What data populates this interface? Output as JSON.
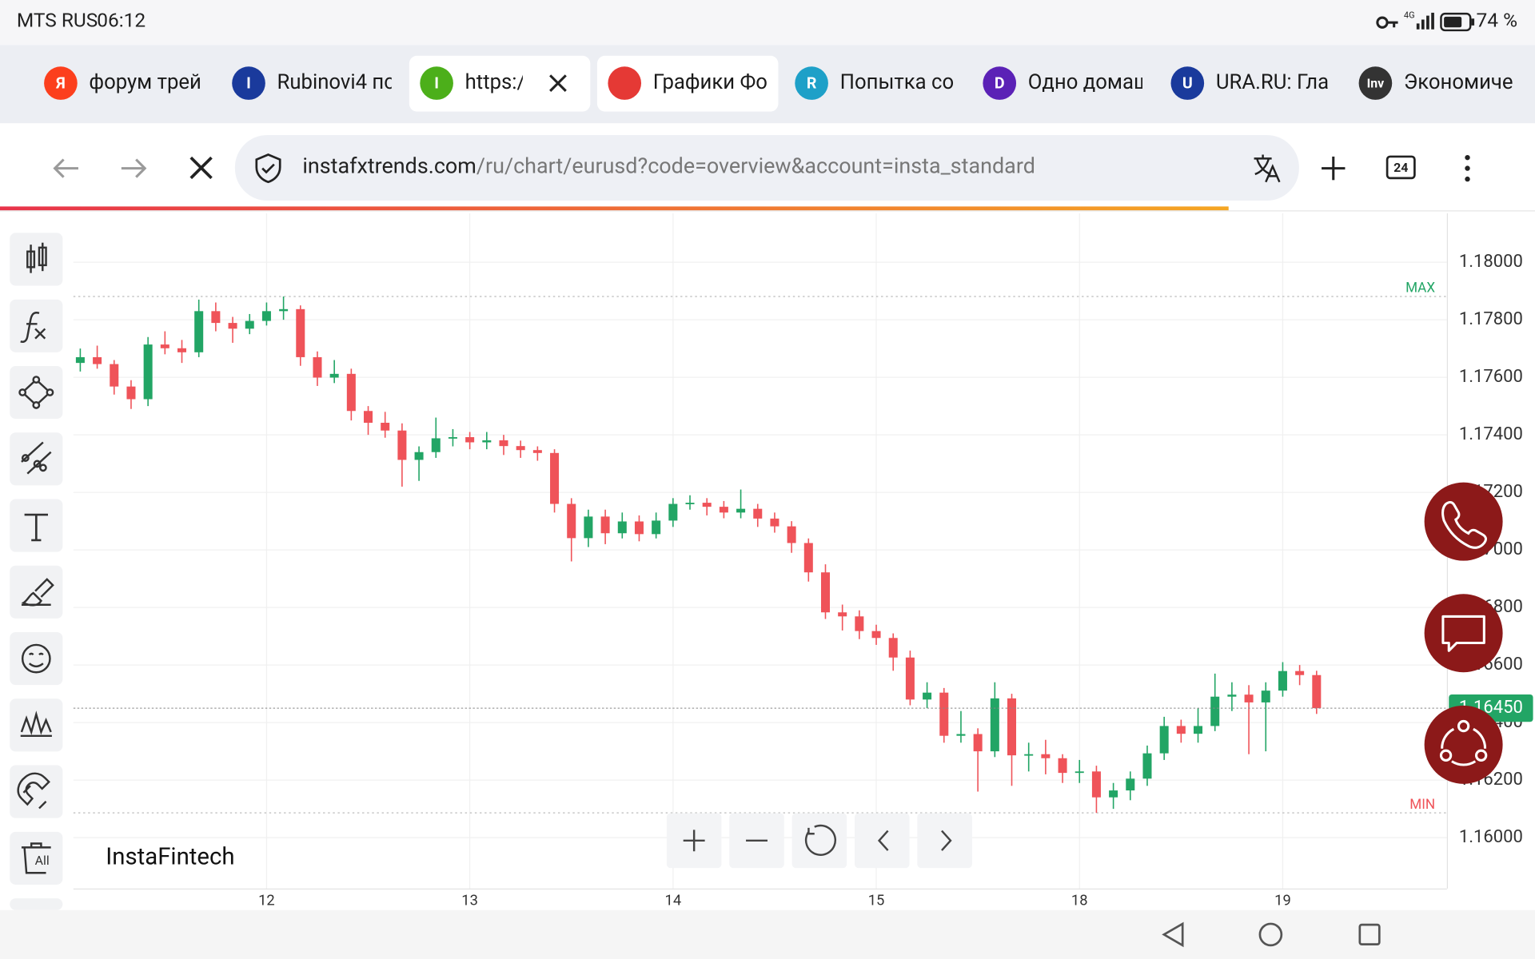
{
  "status_bar": {
    "carrier": "MTS RUS",
    "time": "06:12",
    "network": "4G",
    "battery": "74 %"
  },
  "tabs": [
    {
      "icon": "Я",
      "title": "форум трей",
      "color": "#fc3f1d"
    },
    {
      "icon": "I",
      "title": "Rubinovi4 пс",
      "color": "#1a3a9c"
    },
    {
      "icon": "I",
      "title": "https:/",
      "color": "#4caf1a"
    },
    {
      "title": "Графики Фо",
      "color": "#e53935"
    },
    {
      "icon": "R",
      "title": "Попытка сое",
      "color": "#1ea0c8"
    },
    {
      "icon": "D",
      "title": "Одно домаш",
      "color": "#5b21b6"
    },
    {
      "icon": "U",
      "title": "URA.RU: Гла",
      "color": "#1a3a9c"
    },
    {
      "icon": "Inv",
      "title": "Экономиче",
      "color": "#333333"
    }
  ],
  "address_bar": {
    "domain": "instafxtrends.com",
    "path": "/ru/chart/eurusd?code=overview&account=insta_standard",
    "tab_count": "24"
  },
  "toolbar": {
    "delete_all": "All"
  },
  "brand": "InstaFintech",
  "chart_data": {
    "type": "candlestick",
    "categories": [
      null,
      null,
      null,
      null,
      null,
      null,
      null,
      null,
      null,
      null,
      null,
      "12",
      null,
      null,
      null,
      null,
      null,
      null,
      null,
      null,
      null,
      null,
      null,
      "13",
      null,
      null,
      null,
      null,
      null,
      null,
      null,
      null,
      null,
      null,
      null,
      "14",
      null,
      null,
      null,
      null,
      null,
      null,
      null,
      null,
      null,
      null,
      null,
      "15",
      null,
      null,
      null,
      null,
      null,
      null,
      null,
      null,
      null,
      null,
      null,
      "18",
      null,
      null,
      null,
      null,
      null,
      null,
      null,
      null,
      null,
      null,
      null,
      "19",
      null,
      null
    ],
    "open": [
      1.1765,
      1.1767,
      1.17646,
      1.17568,
      1.17524,
      1.17714,
      1.17701,
      1.17687,
      1.1783,
      1.17789,
      1.17769,
      1.17796,
      1.1783,
      1.17837,
      1.1767,
      1.17599,
      1.17612,
      1.17483,
      1.17442,
      1.17415,
      1.17313,
      1.1734,
      1.17388,
      1.17392,
      1.17374,
      1.17381,
      1.17361,
      1.17347,
      1.17337,
      1.1716,
      1.17041,
      1.17116,
      1.17058,
      1.17099,
      1.17055,
      1.17102,
      1.1716,
      1.17164,
      1.1715,
      1.1713,
      1.17143,
      1.17109,
      1.17082,
      1.17024,
      1.16922,
      1.16783,
      1.16769,
      1.16718,
      1.16694,
      1.16626,
      1.1648,
      1.16504,
      1.16354,
      1.1636,
      1.163,
      1.16484,
      1.16286,
      1.1629,
      1.16276,
      1.16225,
      1.1623,
      1.1614,
      1.16164,
      1.16205,
      1.16293,
      1.16388,
      1.16361,
      1.16388,
      1.1649,
      1.16497,
      1.1647,
      1.16511,
      1.16579,
      1.16565
    ],
    "high": [
      1.177,
      1.1771,
      1.1766,
      1.1759,
      1.1774,
      1.1776,
      1.1773,
      1.1787,
      1.1786,
      1.1781,
      1.1782,
      1.1786,
      1.17881,
      1.1785,
      1.1769,
      1.1766,
      1.1763,
      1.175,
      1.1748,
      1.1744,
      1.1736,
      1.1746,
      1.1742,
      1.1741,
      1.1741,
      1.174,
      1.1738,
      1.1736,
      1.1735,
      1.1718,
      1.1714,
      1.1714,
      1.1713,
      1.1712,
      1.1713,
      1.1718,
      1.1719,
      1.1718,
      1.1717,
      1.1721,
      1.1716,
      1.1713,
      1.171,
      1.1704,
      1.1695,
      1.1681,
      1.1679,
      1.1674,
      1.1671,
      1.1665,
      1.1654,
      1.1652,
      1.1644,
      1.1638,
      1.1654,
      1.165,
      1.1633,
      1.1634,
      1.1629,
      1.1627,
      1.1625,
      1.1619,
      1.1623,
      1.1632,
      1.1642,
      1.1641,
      1.1645,
      1.1657,
      1.1654,
      1.1653,
      1.1654,
      1.1661,
      1.166,
      1.1658
    ],
    "low": [
      1.1762,
      1.1763,
      1.1754,
      1.1749,
      1.175,
      1.1768,
      1.1765,
      1.1767,
      1.1776,
      1.1772,
      1.1775,
      1.1778,
      1.178,
      1.1764,
      1.1757,
      1.1758,
      1.1745,
      1.174,
      1.1739,
      1.1722,
      1.1724,
      1.1732,
      1.1736,
      1.1735,
      1.1735,
      1.1733,
      1.1732,
      1.1731,
      1.1713,
      1.1696,
      1.1701,
      1.1702,
      1.1704,
      1.1703,
      1.1704,
      1.1708,
      1.1714,
      1.1712,
      1.1711,
      1.1711,
      1.1708,
      1.1706,
      1.1699,
      1.1689,
      1.1676,
      1.1672,
      1.1669,
      1.1667,
      1.1658,
      1.1646,
      1.1645,
      1.1633,
      1.1633,
      1.1616,
      1.1628,
      1.1618,
      1.1623,
      1.1622,
      1.1619,
      1.1619,
      1.16086,
      1.161,
      1.1613,
      1.1618,
      1.1627,
      1.1633,
      1.1633,
      1.1637,
      1.1644,
      1.1629,
      1.163,
      1.1649,
      1.1653,
      1.1643
    ],
    "close": [
      1.1767,
      1.17646,
      1.17568,
      1.17524,
      1.17714,
      1.17701,
      1.17687,
      1.1783,
      1.17789,
      1.17769,
      1.17796,
      1.1783,
      1.17837,
      1.1767,
      1.17599,
      1.17612,
      1.17483,
      1.17442,
      1.17415,
      1.17313,
      1.1734,
      1.17388,
      1.17392,
      1.17374,
      1.17381,
      1.17361,
      1.17347,
      1.17337,
      1.1716,
      1.17041,
      1.17116,
      1.17058,
      1.17099,
      1.17055,
      1.17102,
      1.1716,
      1.17164,
      1.1715,
      1.1713,
      1.17143,
      1.17109,
      1.17082,
      1.17024,
      1.16922,
      1.16783,
      1.16769,
      1.16718,
      1.16694,
      1.16626,
      1.1648,
      1.16504,
      1.16354,
      1.1636,
      1.163,
      1.16484,
      1.16286,
      1.1629,
      1.16276,
      1.16225,
      1.1623,
      1.1614,
      1.16164,
      1.16205,
      1.16293,
      1.16388,
      1.16361,
      1.16388,
      1.1649,
      1.16497,
      1.1647,
      1.16511,
      1.16579,
      1.16565,
      1.1645
    ],
    "up_color": "#22a565",
    "down_color": "#ef5359",
    "ylim": [
      1.15823,
      1.1817
    ],
    "yticks": [
      {
        "value": 1.16,
        "label": "1.16000"
      },
      {
        "value": 1.162,
        "label": "1.16200"
      },
      {
        "value": 1.164,
        "label": "1.16400"
      },
      {
        "value": 1.166,
        "label": "1.16600"
      },
      {
        "value": 1.168,
        "label": "1.16800"
      },
      {
        "value": 1.17,
        "label": "1.17000"
      },
      {
        "value": 1.172,
        "label": "1.17200"
      },
      {
        "value": 1.174,
        "label": "1.17400"
      },
      {
        "value": 1.176,
        "label": "1.17600"
      },
      {
        "value": 1.178,
        "label": "1.17800"
      },
      {
        "value": 1.18,
        "label": "1.18000"
      }
    ],
    "grid": true,
    "max_label": "MAX",
    "min_label": "MIN",
    "last_label": "1.16450"
  }
}
